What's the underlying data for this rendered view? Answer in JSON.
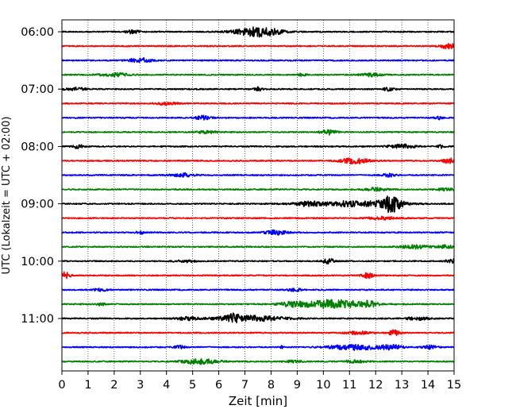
{
  "chart_data": {
    "type": "line",
    "xlabel": "Zeit  [min]",
    "ylabel": "UTC (Lokalzeit = UTC + 02:00)",
    "xlim": [
      0,
      15
    ],
    "x_ticks": [
      0,
      1,
      2,
      3,
      4,
      5,
      6,
      7,
      8,
      9,
      10,
      11,
      12,
      13,
      14,
      15
    ],
    "y_tick_labels": [
      "06:00",
      "07:00",
      "08:00",
      "09:00",
      "10:00",
      "11:00"
    ],
    "grid": "vertical dotted at each minute",
    "trace_colors": [
      "#000000",
      "#ff0000",
      "#0000ff",
      "#008000"
    ],
    "series": [
      {
        "start": "06:00",
        "color": "#000000",
        "events": [
          {
            "t": 7.5,
            "amp": 1.0,
            "w": 0.6
          },
          {
            "t": 2.7,
            "amp": 0.35,
            "w": 0.2
          }
        ]
      },
      {
        "start": "06:15",
        "color": "#ff0000",
        "events": [
          {
            "t": 14.8,
            "amp": 0.5,
            "w": 0.25
          }
        ]
      },
      {
        "start": "06:30",
        "color": "#0000ff",
        "events": [
          {
            "t": 3.0,
            "amp": 0.5,
            "w": 0.3
          }
        ]
      },
      {
        "start": "06:45",
        "color": "#008000",
        "events": [
          {
            "t": 2.0,
            "amp": 0.35,
            "w": 0.4
          },
          {
            "t": 9.2,
            "amp": 0.3,
            "w": 0.1
          },
          {
            "t": 11.8,
            "amp": 0.3,
            "w": 0.3
          }
        ]
      },
      {
        "start": "07:00",
        "color": "#000000",
        "events": [
          {
            "t": 7.5,
            "amp": 0.4,
            "w": 0.1
          },
          {
            "t": 12.5,
            "amp": 0.35,
            "w": 0.15
          },
          {
            "t": 0.5,
            "amp": 0.3,
            "w": 0.3
          }
        ]
      },
      {
        "start": "07:15",
        "color": "#ff0000",
        "events": [
          {
            "t": 4.0,
            "amp": 0.25,
            "w": 0.3
          }
        ]
      },
      {
        "start": "07:30",
        "color": "#0000ff",
        "events": [
          {
            "t": 5.4,
            "amp": 0.45,
            "w": 0.2
          },
          {
            "t": 14.4,
            "amp": 0.35,
            "w": 0.1
          }
        ]
      },
      {
        "start": "07:45",
        "color": "#008000",
        "events": [
          {
            "t": 10.2,
            "amp": 0.55,
            "w": 0.2
          },
          {
            "t": 5.5,
            "amp": 0.25,
            "w": 0.3
          }
        ]
      },
      {
        "start": "08:00",
        "color": "#000000",
        "events": [
          {
            "t": 0.6,
            "amp": 0.4,
            "w": 0.15
          },
          {
            "t": 13.0,
            "amp": 0.45,
            "w": 0.35
          },
          {
            "t": 14.5,
            "amp": 0.3,
            "w": 0.1
          }
        ]
      },
      {
        "start": "08:15",
        "color": "#ff0000",
        "events": [
          {
            "t": 11.2,
            "amp": 0.55,
            "w": 0.4
          },
          {
            "t": 14.8,
            "amp": 0.55,
            "w": 0.15
          }
        ]
      },
      {
        "start": "08:30",
        "color": "#0000ff",
        "events": [
          {
            "t": 4.6,
            "amp": 0.4,
            "w": 0.3
          },
          {
            "t": 12.5,
            "amp": 0.3,
            "w": 0.2
          }
        ]
      },
      {
        "start": "08:45",
        "color": "#008000",
        "events": [
          {
            "t": 12.0,
            "amp": 0.35,
            "w": 0.3
          },
          {
            "t": 14.7,
            "amp": 0.3,
            "w": 0.2
          }
        ]
      },
      {
        "start": "09:00",
        "color": "#000000",
        "events": [
          {
            "t": 12.6,
            "amp": 1.6,
            "w": 0.25
          },
          {
            "t": 11.2,
            "amp": 0.55,
            "w": 1.2
          },
          {
            "t": 9.4,
            "amp": 0.35,
            "w": 0.3
          }
        ]
      },
      {
        "start": "09:15",
        "color": "#ff0000",
        "events": [
          {
            "t": 12.3,
            "amp": 0.3,
            "w": 0.4
          }
        ]
      },
      {
        "start": "09:30",
        "color": "#0000ff",
        "events": [
          {
            "t": 8.2,
            "amp": 0.45,
            "w": 0.3
          },
          {
            "t": 3.0,
            "amp": 0.3,
            "w": 0.1
          }
        ]
      },
      {
        "start": "09:45",
        "color": "#008000",
        "events": [
          {
            "t": 13.5,
            "amp": 0.35,
            "w": 0.4
          },
          {
            "t": 14.7,
            "amp": 0.35,
            "w": 0.2
          }
        ]
      },
      {
        "start": "10:00",
        "color": "#000000",
        "events": [
          {
            "t": 10.2,
            "amp": 0.55,
            "w": 0.15
          },
          {
            "t": 14.9,
            "amp": 0.45,
            "w": 0.15
          },
          {
            "t": 4.7,
            "amp": 0.2,
            "w": 0.3
          }
        ]
      },
      {
        "start": "10:15",
        "color": "#ff0000",
        "events": [
          {
            "t": 0.1,
            "amp": 0.7,
            "w": 0.15
          },
          {
            "t": 11.7,
            "amp": 0.55,
            "w": 0.15
          }
        ]
      },
      {
        "start": "10:30",
        "color": "#0000ff",
        "events": [
          {
            "t": 8.9,
            "amp": 0.3,
            "w": 0.2
          },
          {
            "t": 1.5,
            "amp": 0.25,
            "w": 0.2
          }
        ]
      },
      {
        "start": "10:45",
        "color": "#008000",
        "events": [
          {
            "t": 10.4,
            "amp": 0.9,
            "w": 0.9
          },
          {
            "t": 8.8,
            "amp": 0.45,
            "w": 0.3
          },
          {
            "t": 11.8,
            "amp": 0.55,
            "w": 0.15
          },
          {
            "t": 1.5,
            "amp": 0.3,
            "w": 0.1
          }
        ]
      },
      {
        "start": "11:00",
        "color": "#000000",
        "events": [
          {
            "t": 7.2,
            "amp": 0.6,
            "w": 0.9
          },
          {
            "t": 6.5,
            "amp": 0.55,
            "w": 0.2
          },
          {
            "t": 4.8,
            "amp": 0.3,
            "w": 0.3
          },
          {
            "t": 13.6,
            "amp": 0.3,
            "w": 0.3
          }
        ]
      },
      {
        "start": "11:15",
        "color": "#ff0000",
        "events": [
          {
            "t": 12.7,
            "amp": 0.55,
            "w": 0.15
          },
          {
            "t": 11.3,
            "amp": 0.3,
            "w": 0.3
          }
        ]
      },
      {
        "start": "11:30",
        "color": "#0000ff",
        "events": [
          {
            "t": 11.2,
            "amp": 0.55,
            "w": 0.7
          },
          {
            "t": 12.6,
            "amp": 0.45,
            "w": 0.3
          },
          {
            "t": 14.1,
            "amp": 0.35,
            "w": 0.2
          },
          {
            "t": 4.5,
            "amp": 0.3,
            "w": 0.15
          },
          {
            "t": 8.4,
            "amp": 0.25,
            "w": 0.05
          }
        ]
      },
      {
        "start": "11:45",
        "color": "#008000",
        "events": [
          {
            "t": 5.3,
            "amp": 0.55,
            "w": 0.5
          },
          {
            "t": 8.9,
            "amp": 0.25,
            "w": 0.2
          },
          {
            "t": 11.2,
            "amp": 0.25,
            "w": 0.3
          }
        ]
      }
    ]
  }
}
